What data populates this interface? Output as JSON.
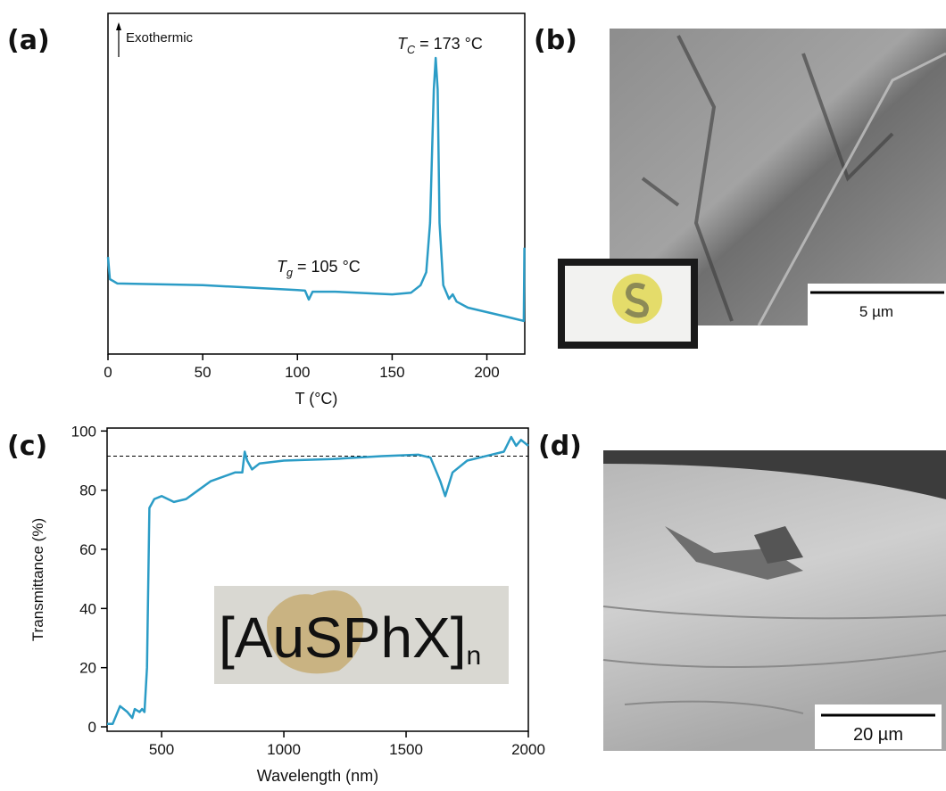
{
  "panel_labels": [
    "(a)",
    "(b)",
    "(c)",
    "(d)"
  ],
  "images": [
    {
      "scale_bar": "5 µm"
    },
    {
      "scale_bar": "20 µm"
    }
  ],
  "chart_data": [
    {
      "type": "line",
      "xlabel": "T (°C)",
      "xlim": [
        0,
        220
      ],
      "xticks": [
        0,
        50,
        100,
        150,
        200
      ],
      "ylim": [
        0,
        100
      ],
      "color": "#2b9cc6",
      "x": [
        0,
        1,
        5,
        50,
        100,
        104,
        106,
        108,
        120,
        150,
        160,
        165,
        168,
        170,
        172,
        173,
        174,
        175,
        177,
        180,
        182,
        184,
        190,
        200,
        210,
        219.5,
        219.8
      ],
      "values": [
        28.5,
        22,
        20.7,
        20.2,
        18.8,
        18.6,
        16,
        18.3,
        18.3,
        17.5,
        18,
        20.2,
        24,
        38.5,
        77.7,
        86.9,
        77.7,
        38.5,
        20.2,
        16.2,
        17.5,
        15.4,
        13.6,
        12.3,
        11,
        9.7,
        31.2
      ],
      "annotations": [
        {
          "text": "Exothermic"
        },
        {
          "text": "T",
          "sub": "g",
          "rest": " = 105 °C"
        },
        {
          "text": "T",
          "sub": "C",
          "rest": " = 173 °C"
        }
      ]
    },
    {
      "type": "line",
      "xlabel": "Wavelength (nm)",
      "ylabel": "Transmittance (%)",
      "xlim": [
        277,
        2000
      ],
      "xticks": [
        500,
        1000,
        1500,
        2000
      ],
      "ylim": [
        -1.5,
        101
      ],
      "yticks": [
        0,
        20,
        40,
        60,
        80,
        100
      ],
      "color": "#2b9cc6",
      "reference_line": 91.5,
      "inset_text": "[AuSPhX]",
      "inset_subscript": "n",
      "x": [
        277,
        300,
        330,
        360,
        380,
        390,
        410,
        420,
        430,
        440,
        450,
        470,
        500,
        550,
        600,
        650,
        700,
        800,
        830,
        840,
        850,
        870,
        900,
        1000,
        1200,
        1400,
        1550,
        1600,
        1640,
        1660,
        1690,
        1750,
        1800,
        1900,
        1930,
        1950,
        1970,
        2000
      ],
      "values": [
        1,
        1,
        7,
        5,
        3,
        6,
        5,
        6,
        5,
        20,
        74,
        77,
        78,
        76,
        77,
        80,
        83,
        86,
        86,
        93,
        90,
        87,
        89,
        90,
        90.5,
        91.5,
        92,
        91,
        83,
        78,
        86,
        90,
        91,
        93,
        98,
        95,
        97,
        95
      ]
    }
  ]
}
